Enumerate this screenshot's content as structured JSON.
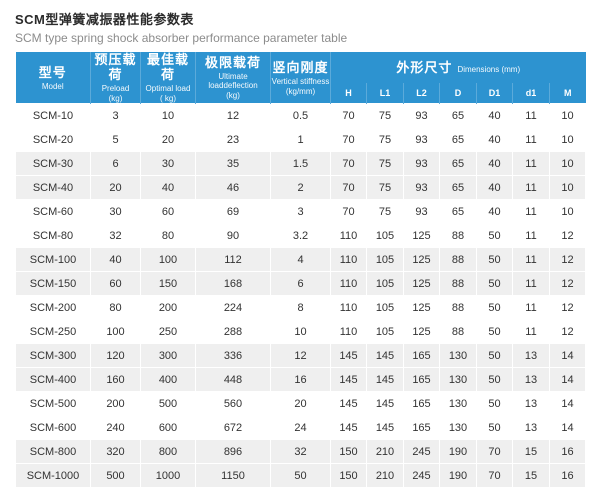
{
  "page": {
    "title_cn": "SCM型弹簧减振器性能参数表",
    "title_en": "SCM type spring shock absorber performance parameter table"
  },
  "colors": {
    "header_blue": "#2d93d0",
    "stripe_gray": "#efefef",
    "title_color": "#2b2b2b",
    "subtitle_color": "#8c8c8c",
    "cell_text": "#333333"
  },
  "table": {
    "columns": [
      {
        "cn": "型号",
        "en": "Model",
        "unit": ""
      },
      {
        "cn": "预压载荷",
        "en": "Preload",
        "unit": "(kg)"
      },
      {
        "cn": "最佳载荷",
        "en": "Optimal load",
        "unit": "( kg)"
      },
      {
        "cn": "极限载荷",
        "en": "Ultimate loaddeflection",
        "unit": "(kg)"
      },
      {
        "cn": "竖向刚度",
        "en": "Vertical stiffness",
        "unit": "(kg/mm)"
      }
    ],
    "dims_group": {
      "cn": "外形尺寸",
      "en": "Dimensions (mm)"
    },
    "dim_columns": [
      "H",
      "L1",
      "L2",
      "D",
      "D1",
      "d1",
      "M"
    ],
    "rows": [
      [
        "SCM-10",
        "3",
        "10",
        "12",
        "0.5",
        "70",
        "75",
        "93",
        "65",
        "40",
        "11",
        "10"
      ],
      [
        "SCM-20",
        "5",
        "20",
        "23",
        "1",
        "70",
        "75",
        "93",
        "65",
        "40",
        "11",
        "10"
      ],
      [
        "SCM-30",
        "6",
        "30",
        "35",
        "1.5",
        "70",
        "75",
        "93",
        "65",
        "40",
        "11",
        "10"
      ],
      [
        "SCM-40",
        "20",
        "40",
        "46",
        "2",
        "70",
        "75",
        "93",
        "65",
        "40",
        "11",
        "10"
      ],
      [
        "SCM-60",
        "30",
        "60",
        "69",
        "3",
        "70",
        "75",
        "93",
        "65",
        "40",
        "11",
        "10"
      ],
      [
        "SCM-80",
        "32",
        "80",
        "90",
        "3.2",
        "110",
        "105",
        "125",
        "88",
        "50",
        "11",
        "12"
      ],
      [
        "SCM-100",
        "40",
        "100",
        "112",
        "4",
        "110",
        "105",
        "125",
        "88",
        "50",
        "11",
        "12"
      ],
      [
        "SCM-150",
        "60",
        "150",
        "168",
        "6",
        "110",
        "105",
        "125",
        "88",
        "50",
        "11",
        "12"
      ],
      [
        "SCM-200",
        "80",
        "200",
        "224",
        "8",
        "110",
        "105",
        "125",
        "88",
        "50",
        "11",
        "12"
      ],
      [
        "SCM-250",
        "100",
        "250",
        "288",
        "10",
        "110",
        "105",
        "125",
        "88",
        "50",
        "11",
        "12"
      ],
      [
        "SCM-300",
        "120",
        "300",
        "336",
        "12",
        "145",
        "145",
        "165",
        "130",
        "50",
        "13",
        "14"
      ],
      [
        "SCM-400",
        "160",
        "400",
        "448",
        "16",
        "145",
        "145",
        "165",
        "130",
        "50",
        "13",
        "14"
      ],
      [
        "SCM-500",
        "200",
        "500",
        "560",
        "20",
        "145",
        "145",
        "165",
        "130",
        "50",
        "13",
        "14"
      ],
      [
        "SCM-600",
        "240",
        "600",
        "672",
        "24",
        "145",
        "145",
        "165",
        "130",
        "50",
        "13",
        "14"
      ],
      [
        "SCM-800",
        "320",
        "800",
        "896",
        "32",
        "150",
        "210",
        "245",
        "190",
        "70",
        "15",
        "16"
      ],
      [
        "SCM-1000",
        "500",
        "1000",
        "1150",
        "50",
        "150",
        "210",
        "245",
        "190",
        "70",
        "15",
        "16"
      ]
    ]
  }
}
